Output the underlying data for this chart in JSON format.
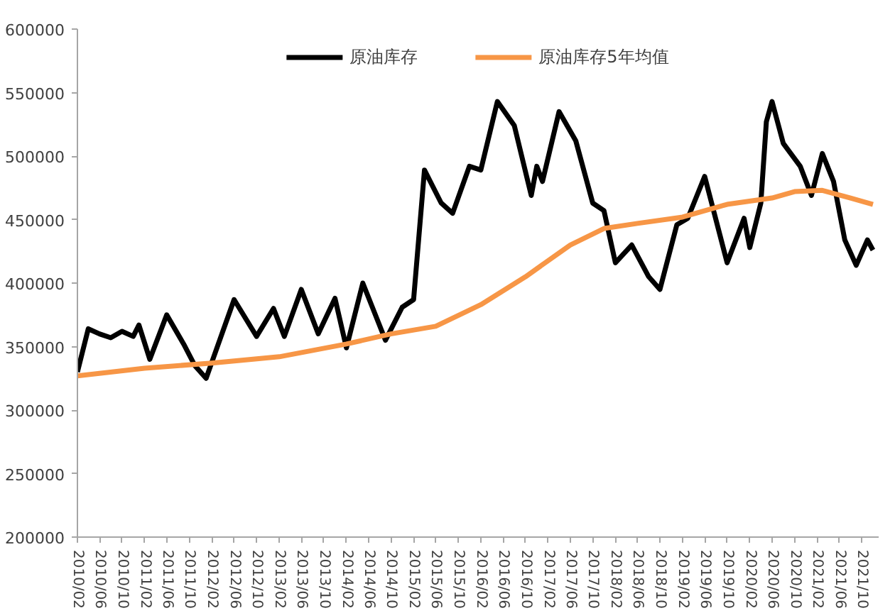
{
  "chart_data": {
    "type": "line",
    "ylim": [
      200000,
      600000
    ],
    "yticks": [
      200000,
      250000,
      300000,
      350000,
      400000,
      450000,
      500000,
      550000,
      600000
    ],
    "xlim": [
      "2010-02",
      "2022-01"
    ],
    "xticks": [
      {
        "value": "2010-02",
        "label": "2010/02"
      },
      {
        "value": "2010-06",
        "label": "2010/06"
      },
      {
        "value": "2010-10",
        "label": "2010/10"
      },
      {
        "value": "2011-02",
        "label": "2011/02"
      },
      {
        "value": "2011-06",
        "label": "2011/06"
      },
      {
        "value": "2011-10",
        "label": "2011/10"
      },
      {
        "value": "2012-02",
        "label": "2012/02"
      },
      {
        "value": "2012-06",
        "label": "2012/06"
      },
      {
        "value": "2012-10",
        "label": "2012/10"
      },
      {
        "value": "2013-02",
        "label": "2013/02"
      },
      {
        "value": "2013-06",
        "label": "2013/06"
      },
      {
        "value": "2013-10",
        "label": "2013/10"
      },
      {
        "value": "2014-02",
        "label": "2014/02"
      },
      {
        "value": "2014-06",
        "label": "2014/06"
      },
      {
        "value": "2014-10",
        "label": "2014/10"
      },
      {
        "value": "2015-02",
        "label": "2015/02"
      },
      {
        "value": "2015-06",
        "label": "2015/06"
      },
      {
        "value": "2015-10",
        "label": "2015/10"
      },
      {
        "value": "2016-02",
        "label": "2016/02"
      },
      {
        "value": "2016-06",
        "label": "2016/06"
      },
      {
        "value": "2016-10",
        "label": "2016/10"
      },
      {
        "value": "2017-02",
        "label": "2017/02"
      },
      {
        "value": "2017-06",
        "label": "2017/06"
      },
      {
        "value": "2017-10",
        "label": "2017/10"
      },
      {
        "value": "2018-02",
        "label": "2018/02"
      },
      {
        "value": "2018-06",
        "label": "2018/06"
      },
      {
        "value": "2018-10",
        "label": "2018/10"
      },
      {
        "value": "2019-02",
        "label": "2019/02"
      },
      {
        "value": "2019-06",
        "label": "2019/06"
      },
      {
        "value": "2019-10",
        "label": "2019/10"
      },
      {
        "value": "2020-02",
        "label": "2020/02"
      },
      {
        "value": "2020-06",
        "label": "2020/06"
      },
      {
        "value": "2020-10",
        "label": "2020/10"
      },
      {
        "value": "2021-02",
        "label": "2021/02"
      },
      {
        "value": "2021-06",
        "label": "2021/06"
      },
      {
        "value": "2021-10",
        "label": "2021/10"
      }
    ],
    "grid": false,
    "legend": "top",
    "marker": "none",
    "line_style": "solid",
    "series": [
      {
        "name": "原油库存",
        "color": "#000000",
        "x": [
          "2010-02",
          "2010-04",
          "2010-06",
          "2010-08",
          "2010-10",
          "2010-12",
          "2011-01",
          "2011-03",
          "2011-06",
          "2011-09",
          "2011-11",
          "2012-01",
          "2012-06",
          "2012-10",
          "2013-01",
          "2013-03",
          "2013-06",
          "2013-09",
          "2013-12",
          "2014-02",
          "2014-05",
          "2014-09",
          "2014-12",
          "2015-02",
          "2015-04",
          "2015-07",
          "2015-09",
          "2015-12",
          "2016-02",
          "2016-05",
          "2016-08",
          "2016-11",
          "2016-12",
          "2017-01",
          "2017-04",
          "2017-07",
          "2017-10",
          "2017-12",
          "2018-02",
          "2018-05",
          "2018-08",
          "2018-10",
          "2019-01",
          "2019-03",
          "2019-06",
          "2019-10",
          "2020-01",
          "2020-02",
          "2020-04",
          "2020-05",
          "2020-06",
          "2020-08",
          "2020-11",
          "2021-01",
          "2021-03",
          "2021-05",
          "2021-07",
          "2021-09",
          "2021-11",
          "2021-12"
        ],
        "values": [
          330000,
          364000,
          360000,
          357000,
          362000,
          358000,
          367000,
          340000,
          375000,
          352000,
          335000,
          325000,
          387000,
          358000,
          380000,
          358000,
          395000,
          360000,
          388000,
          349000,
          400000,
          355000,
          381000,
          387000,
          489000,
          463000,
          455000,
          492000,
          489000,
          543000,
          524000,
          469000,
          492000,
          480000,
          535000,
          512000,
          463000,
          457000,
          416000,
          430000,
          405000,
          395000,
          446000,
          451000,
          484000,
          416000,
          451000,
          428000,
          463000,
          527000,
          543000,
          510000,
          492000,
          469000,
          502000,
          480000,
          434000,
          414000,
          434000,
          426000
        ]
      },
      {
        "name": "原油库存5年均值",
        "color": "#f79646",
        "x": [
          "2010-02",
          "2011-02",
          "2012-02",
          "2013-02",
          "2014-02",
          "2014-10",
          "2015-06",
          "2016-02",
          "2016-10",
          "2017-06",
          "2017-12",
          "2018-06",
          "2019-02",
          "2019-10",
          "2020-06",
          "2020-10",
          "2021-03",
          "2021-08",
          "2021-12"
        ],
        "values": [
          327000,
          333000,
          337000,
          342000,
          352000,
          360000,
          366000,
          383000,
          405000,
          430000,
          443000,
          447000,
          452000,
          462000,
          467000,
          472000,
          473000,
          467000,
          462000
        ]
      }
    ]
  }
}
